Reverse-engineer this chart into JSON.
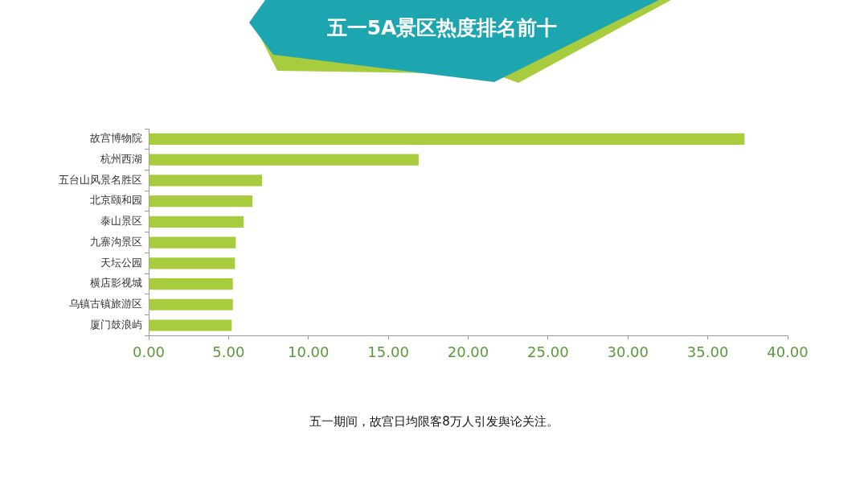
{
  "chart_data": {
    "type": "bar",
    "orientation": "horizontal",
    "title": "五一5A景区热度排名前十",
    "categories": [
      "故宫博物院",
      "杭州西湖",
      "五台山风景名胜区",
      "北京颐和园",
      "泰山景区",
      "九寨沟景区",
      "天坛公园",
      "横店影视城",
      "乌镇古镇旅游区",
      "厦门鼓浪屿"
    ],
    "values": [
      37.3,
      16.9,
      7.1,
      6.5,
      5.95,
      5.45,
      5.4,
      5.27,
      5.27,
      5.2
    ],
    "color": "#a9cc3f",
    "xlim": [
      0,
      40
    ],
    "xticks": [
      {
        "value": 0,
        "label": "0.00"
      },
      {
        "value": 5,
        "label": "5.00"
      },
      {
        "value": 10,
        "label": "10.00"
      },
      {
        "value": 15,
        "label": "15.00"
      },
      {
        "value": 20,
        "label": "20.00"
      },
      {
        "value": 25,
        "label": "25.00"
      },
      {
        "value": 30,
        "label": "30.00"
      },
      {
        "value": 35,
        "label": "35.00"
      },
      {
        "value": 40,
        "label": "40.00"
      }
    ],
    "grid": false,
    "legend": false,
    "annotations": [
      "五一期间，故宫日均限客8万人引发舆论关注。"
    ]
  }
}
